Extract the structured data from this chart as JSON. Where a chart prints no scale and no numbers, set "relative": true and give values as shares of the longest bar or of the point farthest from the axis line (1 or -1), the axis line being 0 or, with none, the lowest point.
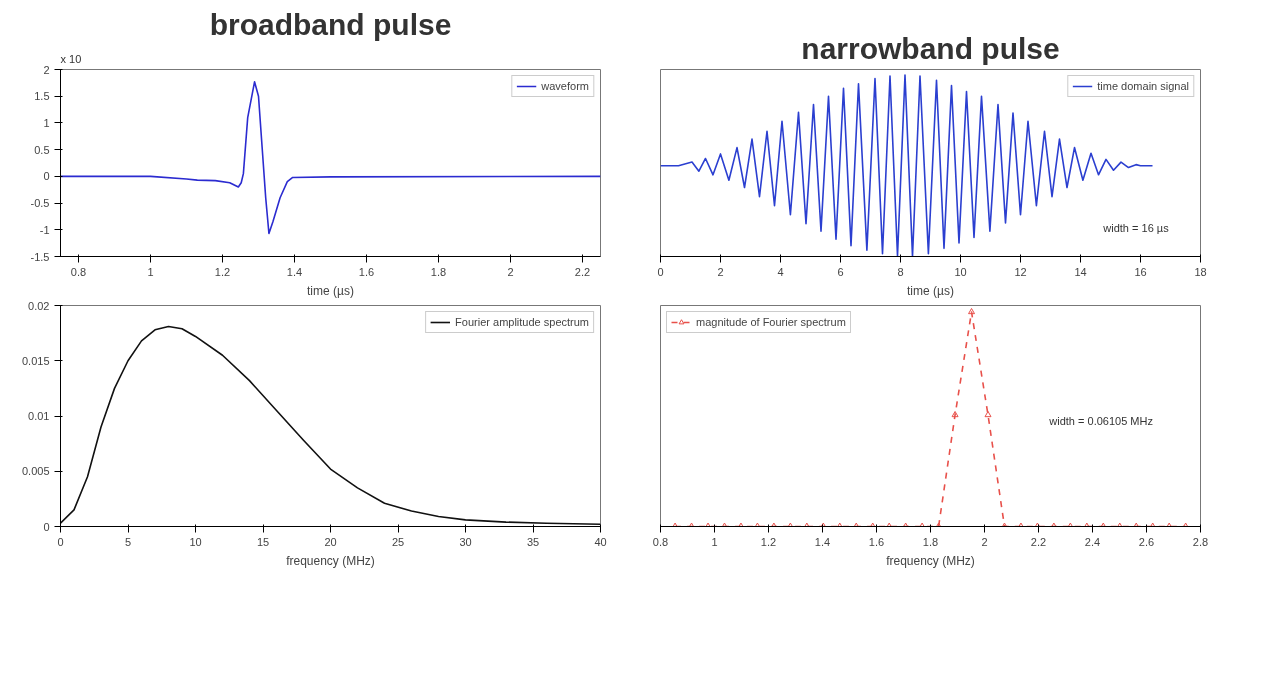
{
  "chart_data": [
    {
      "type": "line",
      "title": "broadband pulse",
      "xlabel": "time (µs)",
      "xlim": [
        0.75,
        2.25
      ],
      "xticks": [
        0.8,
        1,
        1.2,
        1.4,
        1.6,
        1.8,
        2,
        2.2
      ],
      "ylim": [
        -1.5,
        2
      ],
      "yticks": [
        -1.5,
        -1,
        -0.5,
        0,
        0.5,
        1,
        1.5,
        2
      ],
      "legend": "top right",
      "annotations": [
        "x 10"
      ],
      "series": [
        {
          "name": "waveform",
          "color": "#2b2bd0",
          "x": [
            0.75,
            1.0,
            1.1,
            1.13,
            1.18,
            1.22,
            1.244,
            1.252,
            1.258,
            1.27,
            1.289,
            1.3,
            1.31,
            1.32,
            1.329,
            1.34,
            1.36,
            1.38,
            1.395,
            1.5,
            2.25
          ],
          "values": [
            0,
            0,
            -0.05,
            -0.07,
            -0.08,
            -0.12,
            -0.2,
            -0.12,
            0.05,
            1.1,
            1.77,
            1.5,
            0.55,
            -0.4,
            -1.07,
            -0.85,
            -0.4,
            -0.1,
            -0.02,
            -0.01,
            0
          ]
        }
      ]
    },
    {
      "type": "line",
      "title": "narrowband pulse",
      "xlabel": "time (µs)",
      "xlim": [
        0,
        18
      ],
      "xticks": [
        0,
        2,
        4,
        6,
        8,
        10,
        12,
        14,
        16,
        18
      ],
      "relative": true,
      "legend": "top right",
      "annotations": [
        "width = 16 µs"
      ],
      "series": [
        {
          "name": "time domain signal",
          "color": "#2b3fd0",
          "x": [
            0,
            0.6,
            1.05,
            1.28,
            1.5,
            1.75,
            2.0,
            2.28,
            2.55,
            2.8,
            3.05,
            3.3,
            3.55,
            3.8,
            4.05,
            4.33,
            4.6,
            4.85,
            5.1,
            5.35,
            5.6,
            5.85,
            6.1,
            6.35,
            6.6,
            6.88,
            7.15,
            7.4,
            7.65,
            7.9,
            8.15,
            8.4,
            8.65,
            8.93,
            9.2,
            9.45,
            9.7,
            9.95,
            10.2,
            10.45,
            10.7,
            10.98,
            11.25,
            11.5,
            11.75,
            12.0,
            12.25,
            12.53,
            12.8,
            13.05,
            13.3,
            13.55,
            13.8,
            14.08,
            14.35,
            14.6,
            14.85,
            15.1,
            15.35,
            15.6,
            15.85,
            16.0,
            16.4
          ],
          "values": [
            0.5,
            0.5,
            0.52,
            0.47,
            0.54,
            0.45,
            0.565,
            0.42,
            0.6,
            0.38,
            0.647,
            0.33,
            0.69,
            0.28,
            0.745,
            0.23,
            0.794,
            0.18,
            0.837,
            0.14,
            0.882,
            0.095,
            0.927,
            0.06,
            0.951,
            0.035,
            0.98,
            0.015,
            0.994,
            0.003,
            1.0,
            0.0,
            0.994,
            0.015,
            0.971,
            0.045,
            0.941,
            0.075,
            0.908,
            0.105,
            0.882,
            0.14,
            0.837,
            0.185,
            0.79,
            0.23,
            0.745,
            0.28,
            0.69,
            0.33,
            0.647,
            0.38,
            0.6,
            0.42,
            0.569,
            0.45,
            0.535,
            0.475,
            0.52,
            0.49,
            0.506,
            0.5,
            0.5
          ]
        }
      ]
    },
    {
      "type": "line",
      "xlabel": "frequency (MHz)",
      "xlim": [
        0,
        40
      ],
      "xticks": [
        0,
        5,
        10,
        15,
        20,
        25,
        30,
        35,
        40
      ],
      "ylim": [
        0,
        0.02
      ],
      "yticks": [
        0,
        0.005,
        0.01,
        0.015,
        0.02
      ],
      "legend": "top right",
      "series": [
        {
          "name": "Fourier amplitude spectrum",
          "color": "#111111",
          "x": [
            0,
            1,
            2,
            3,
            4,
            5,
            6,
            7,
            8,
            9,
            10,
            12,
            14,
            16,
            18,
            20,
            22,
            24,
            26,
            28,
            30,
            33,
            36,
            40
          ],
          "values": [
            0.0003,
            0.0015,
            0.0045,
            0.009,
            0.0125,
            0.015,
            0.0168,
            0.0178,
            0.0181,
            0.0179,
            0.0172,
            0.0155,
            0.0132,
            0.0105,
            0.0078,
            0.0052,
            0.0035,
            0.0021,
            0.0014,
            0.0009,
            0.0006,
            0.0004,
            0.0003,
            0.0002
          ]
        }
      ]
    },
    {
      "type": "line",
      "xlabel": "frequency (MHz)",
      "xlim": [
        0.8,
        2.8
      ],
      "xticks": [
        0.8,
        1,
        1.2,
        1.4,
        1.6,
        1.8,
        2,
        2.2,
        2.4,
        2.6,
        2.8
      ],
      "relative": true,
      "legend": "top left",
      "marker": "triangle",
      "line_style": "dashed",
      "annotations": [
        "width = 0.06105 MHz"
      ],
      "series": [
        {
          "name": "magnitude of Fourier spectrum",
          "color": "#e8504a",
          "x": [
            0.854,
            0.915,
            0.976,
            1.037,
            1.098,
            1.159,
            1.22,
            1.281,
            1.342,
            1.403,
            1.464,
            1.525,
            1.586,
            1.647,
            1.708,
            1.769,
            1.83,
            1.891,
            1.952,
            2.013,
            2.074,
            2.135,
            2.196,
            2.257,
            2.318,
            2.379,
            2.44,
            2.501,
            2.562,
            2.623,
            2.684,
            2.745
          ],
          "values": [
            0,
            0,
            0,
            0,
            0,
            0,
            0,
            0,
            0,
            0,
            0,
            0,
            0,
            0,
            0,
            0,
            0,
            0.52,
            1,
            0.52,
            0,
            0,
            0,
            0,
            0,
            0,
            0,
            0,
            0,
            0,
            0,
            0
          ]
        }
      ]
    }
  ]
}
